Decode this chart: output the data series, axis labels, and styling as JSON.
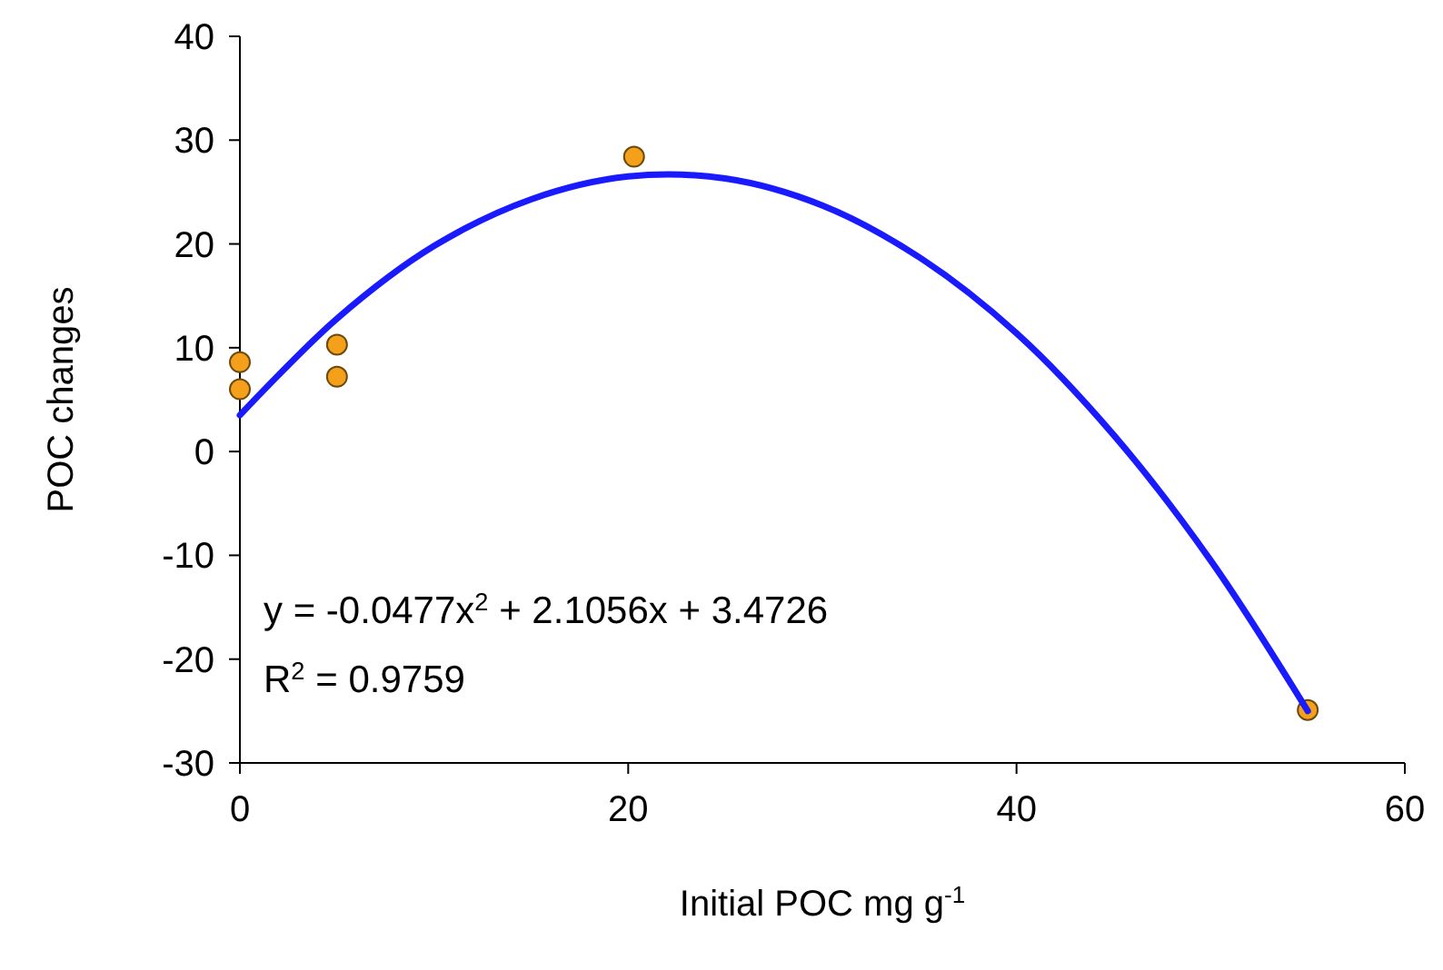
{
  "chart_data": {
    "type": "scatter",
    "xlabel": "Initial POC mg g$^{-1}$",
    "ylabel": "POC changes",
    "xlim": [
      0,
      60
    ],
    "xticks": [
      0,
      20,
      40,
      60
    ],
    "ylim": [
      -30,
      40
    ],
    "yticks": [
      -30,
      -20,
      -10,
      0,
      10,
      20,
      30,
      40
    ],
    "grid": false,
    "annotations": [
      "y = -0.0477x$^{2}$ + 2.1056x + 3.4726",
      "R$^{2}$ = 0.9759"
    ],
    "series": [
      {
        "marker": "circle",
        "color": "#f5a01a",
        "x": [
          0,
          0,
          5,
          5,
          20.3,
          55
        ],
        "values": [
          8.6,
          6.0,
          10.3,
          7.2,
          28.4,
          -24.9
        ]
      },
      {
        "type": "line",
        "marker": "none",
        "line_style": "solid",
        "color": "#1a1aff",
        "x": [
          0,
          5,
          10,
          15,
          20,
          25,
          30,
          35,
          40,
          45,
          50,
          55
        ],
        "values": [
          3.5,
          12.8,
          19.8,
          24.3,
          26.5,
          26.3,
          23.7,
          18.7,
          11.4,
          1.6,
          -10.5,
          -25
        ]
      }
    ]
  }
}
